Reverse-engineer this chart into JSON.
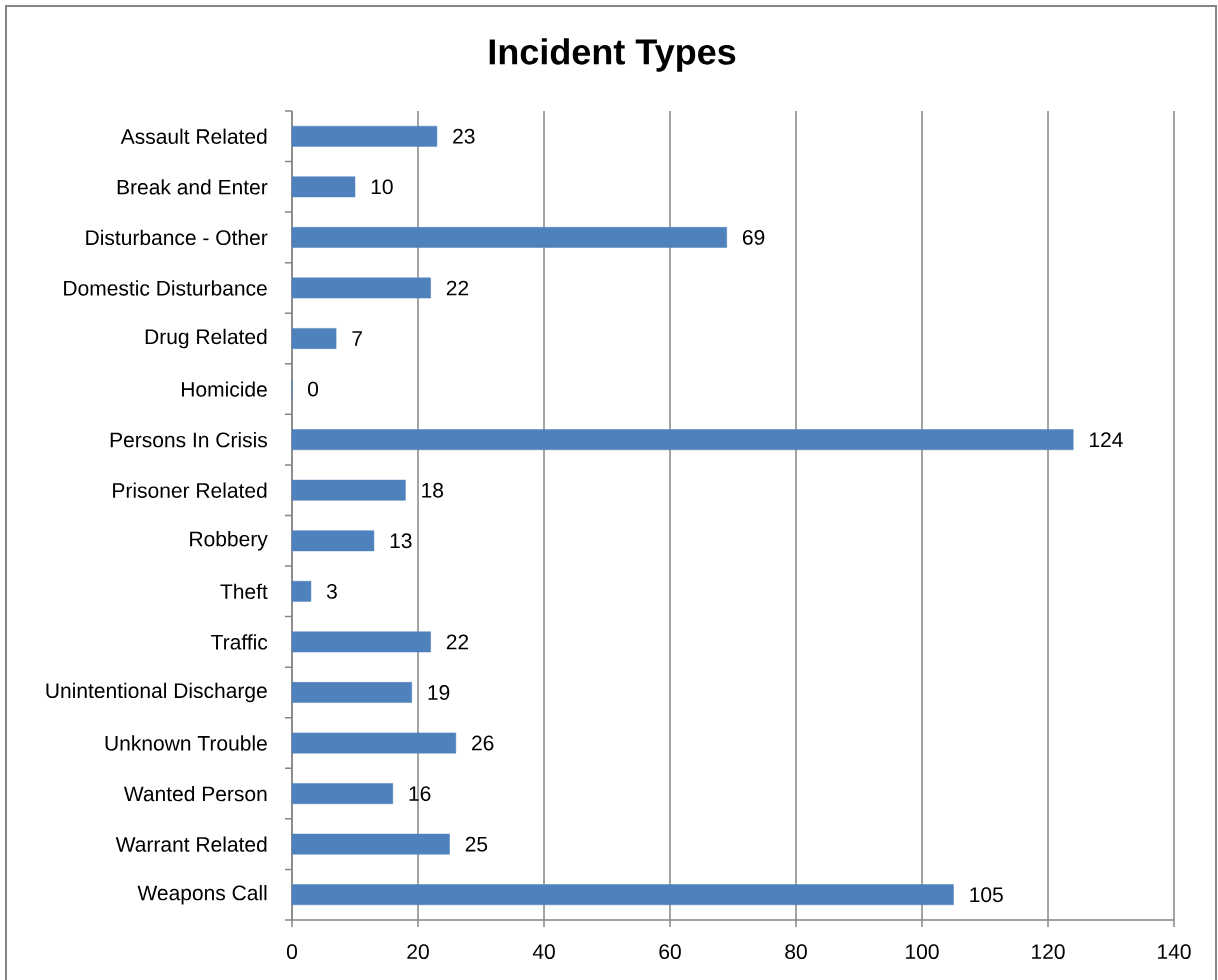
{
  "chart_data": {
    "type": "bar",
    "orientation": "horizontal",
    "title": "Incident Types",
    "categories": [
      "Assault Related",
      "Break and Enter",
      "Disturbance - Other",
      "Domestic Disturbance",
      "Drug Related",
      "Homicide",
      "Persons In Crisis",
      "Prisoner Related",
      "Robbery",
      "Theft",
      "Traffic",
      "Unintentional Discharge",
      "Unknown Trouble",
      "Wanted Person",
      "Warrant Related",
      "Weapons Call"
    ],
    "values": [
      23,
      10,
      69,
      22,
      7,
      0,
      124,
      18,
      13,
      3,
      22,
      19,
      26,
      16,
      25,
      105
    ],
    "color": "#4f81bd",
    "xlim": [
      0,
      140
    ],
    "xticks": [
      0,
      20,
      40,
      60,
      80,
      100,
      120,
      140
    ],
    "grid": "x",
    "data_labels": true
  }
}
